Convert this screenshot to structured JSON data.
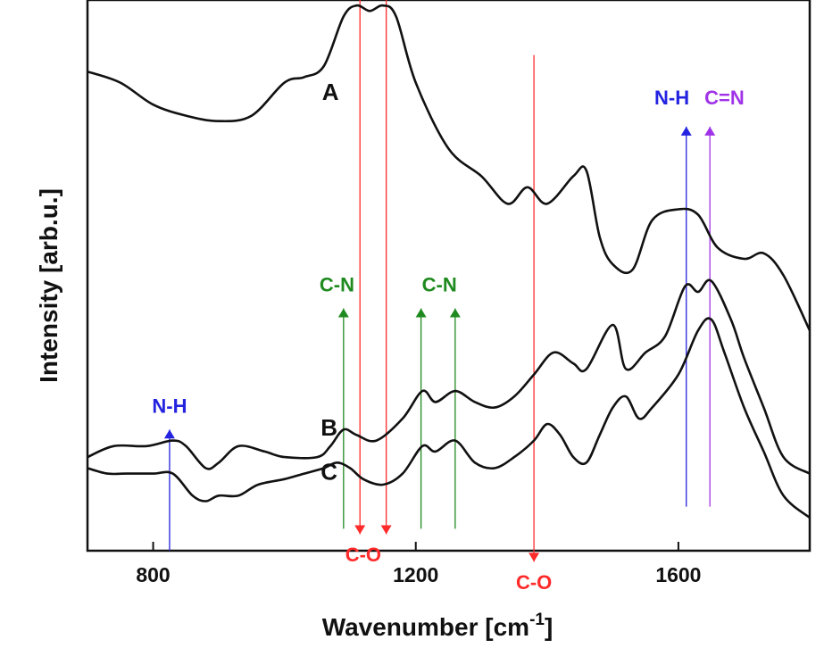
{
  "chart_data": {
    "type": "line",
    "xlabel": "Wavenumber [cm",
    "xlabel_sup": "-1",
    "xlabel_end": "]",
    "ylabel": "Intensity [arb.u.]",
    "xlim": [
      700,
      1800
    ],
    "ylim": [
      0,
      100
    ],
    "x_ticks": [
      800,
      1200,
      1600
    ],
    "x_tick_labels": [
      "800",
      "1200",
      "1600"
    ],
    "y_ticks_labeled": false,
    "grid": false,
    "colors": {
      "black": "#111111",
      "red": "#ff2a2a",
      "blue": "#2323e0",
      "green": "#1f8a1f",
      "violet": "#a033e8"
    },
    "series": [
      {
        "name": "A",
        "label_at": [
          1070,
          83
        ],
        "points": [
          [
            700,
            87
          ],
          [
            750,
            85
          ],
          [
            800,
            81
          ],
          [
            850,
            79
          ],
          [
            900,
            78
          ],
          [
            950,
            79
          ],
          [
            1000,
            85
          ],
          [
            1030,
            86
          ],
          [
            1060,
            88
          ],
          [
            1090,
            97
          ],
          [
            1110,
            99
          ],
          [
            1130,
            98
          ],
          [
            1150,
            99
          ],
          [
            1170,
            97
          ],
          [
            1200,
            85
          ],
          [
            1250,
            73
          ],
          [
            1300,
            68
          ],
          [
            1340,
            63
          ],
          [
            1370,
            66
          ],
          [
            1400,
            63
          ],
          [
            1440,
            68
          ],
          [
            1460,
            69
          ],
          [
            1480,
            57
          ],
          [
            1500,
            52
          ],
          [
            1530,
            51
          ],
          [
            1560,
            60
          ],
          [
            1600,
            62
          ],
          [
            1630,
            61
          ],
          [
            1660,
            55
          ],
          [
            1700,
            53
          ],
          [
            1730,
            54
          ],
          [
            1760,
            50
          ],
          [
            1800,
            40
          ]
        ]
      },
      {
        "name": "B",
        "label_at": [
          1068,
          22
        ],
        "points": [
          [
            700,
            17
          ],
          [
            740,
            19
          ],
          [
            790,
            19
          ],
          [
            830,
            20
          ],
          [
            850,
            19
          ],
          [
            880,
            15
          ],
          [
            900,
            16
          ],
          [
            930,
            19
          ],
          [
            970,
            18
          ],
          [
            1000,
            17
          ],
          [
            1050,
            17
          ],
          [
            1070,
            19
          ],
          [
            1090,
            22
          ],
          [
            1110,
            21
          ],
          [
            1140,
            20
          ],
          [
            1180,
            24
          ],
          [
            1210,
            29
          ],
          [
            1230,
            27
          ],
          [
            1260,
            29
          ],
          [
            1290,
            27
          ],
          [
            1320,
            26
          ],
          [
            1350,
            28
          ],
          [
            1380,
            32
          ],
          [
            1410,
            36
          ],
          [
            1440,
            34
          ],
          [
            1460,
            33
          ],
          [
            1500,
            41
          ],
          [
            1520,
            33
          ],
          [
            1550,
            36
          ],
          [
            1580,
            39
          ],
          [
            1610,
            48
          ],
          [
            1630,
            47
          ],
          [
            1650,
            49
          ],
          [
            1680,
            42
          ],
          [
            1700,
            35
          ],
          [
            1730,
            26
          ],
          [
            1760,
            17
          ],
          [
            1800,
            14
          ]
        ]
      },
      {
        "name": "C",
        "label_at": [
          1068,
          14
        ],
        "points": [
          [
            700,
            15
          ],
          [
            730,
            14
          ],
          [
            760,
            14
          ],
          [
            800,
            14
          ],
          [
            830,
            14
          ],
          [
            860,
            10
          ],
          [
            880,
            9
          ],
          [
            900,
            10
          ],
          [
            930,
            10
          ],
          [
            960,
            12
          ],
          [
            1000,
            13
          ],
          [
            1030,
            14
          ],
          [
            1060,
            15
          ],
          [
            1080,
            16
          ],
          [
            1100,
            15
          ],
          [
            1120,
            13
          ],
          [
            1150,
            12
          ],
          [
            1180,
            14
          ],
          [
            1210,
            19
          ],
          [
            1230,
            18
          ],
          [
            1260,
            20
          ],
          [
            1290,
            16
          ],
          [
            1320,
            15
          ],
          [
            1350,
            17
          ],
          [
            1380,
            20
          ],
          [
            1400,
            23
          ],
          [
            1420,
            21
          ],
          [
            1440,
            17
          ],
          [
            1460,
            16
          ],
          [
            1480,
            21
          ],
          [
            1500,
            26
          ],
          [
            1520,
            28
          ],
          [
            1540,
            24
          ],
          [
            1560,
            26
          ],
          [
            1600,
            32
          ],
          [
            1630,
            40
          ],
          [
            1650,
            42
          ],
          [
            1670,
            36
          ],
          [
            1700,
            26
          ],
          [
            1730,
            18
          ],
          [
            1760,
            10
          ],
          [
            1800,
            6
          ]
        ]
      }
    ],
    "annotations": [
      {
        "label": "C-O",
        "color": "red",
        "x": 1115,
        "y_from": 108,
        "y_to": 3,
        "direction": "down",
        "label_x": 1120,
        "label_y": -1
      },
      {
        "label": "",
        "color": "red",
        "x": 1155,
        "y_from": 108,
        "y_to": 3,
        "direction": "down"
      },
      {
        "label": "C-O",
        "color": "red",
        "x": 1380,
        "y_from": 90,
        "y_to": -2,
        "direction": "down",
        "label_x": 1380,
        "label_y": -6
      },
      {
        "label": "N-H",
        "color": "blue",
        "x": 825,
        "y_from": 0,
        "y_to": 22,
        "direction": "up",
        "label_x": 825,
        "label_y": 26
      },
      {
        "label": "C-N",
        "color": "green",
        "x": 1090,
        "y_from": 4,
        "y_to": 44,
        "direction": "up",
        "label_x": 1080,
        "label_y": 48
      },
      {
        "label": "",
        "color": "green",
        "x": 1208,
        "y_from": 4,
        "y_to": 44,
        "direction": "up"
      },
      {
        "label": "C-N",
        "color": "green",
        "x": 1260,
        "y_from": 4,
        "y_to": 44,
        "direction": "up",
        "label_x": 1236,
        "label_y": 48
      },
      {
        "label": "N-H",
        "color": "blue",
        "x": 1612,
        "y_from": 8,
        "y_to": 77,
        "direction": "up",
        "label_x": 1590,
        "label_y": 82
      },
      {
        "label": "C=N",
        "color": "violet",
        "x": 1648,
        "y_from": 8,
        "y_to": 77,
        "direction": "up",
        "label_x": 1670,
        "label_y": 82
      }
    ]
  }
}
